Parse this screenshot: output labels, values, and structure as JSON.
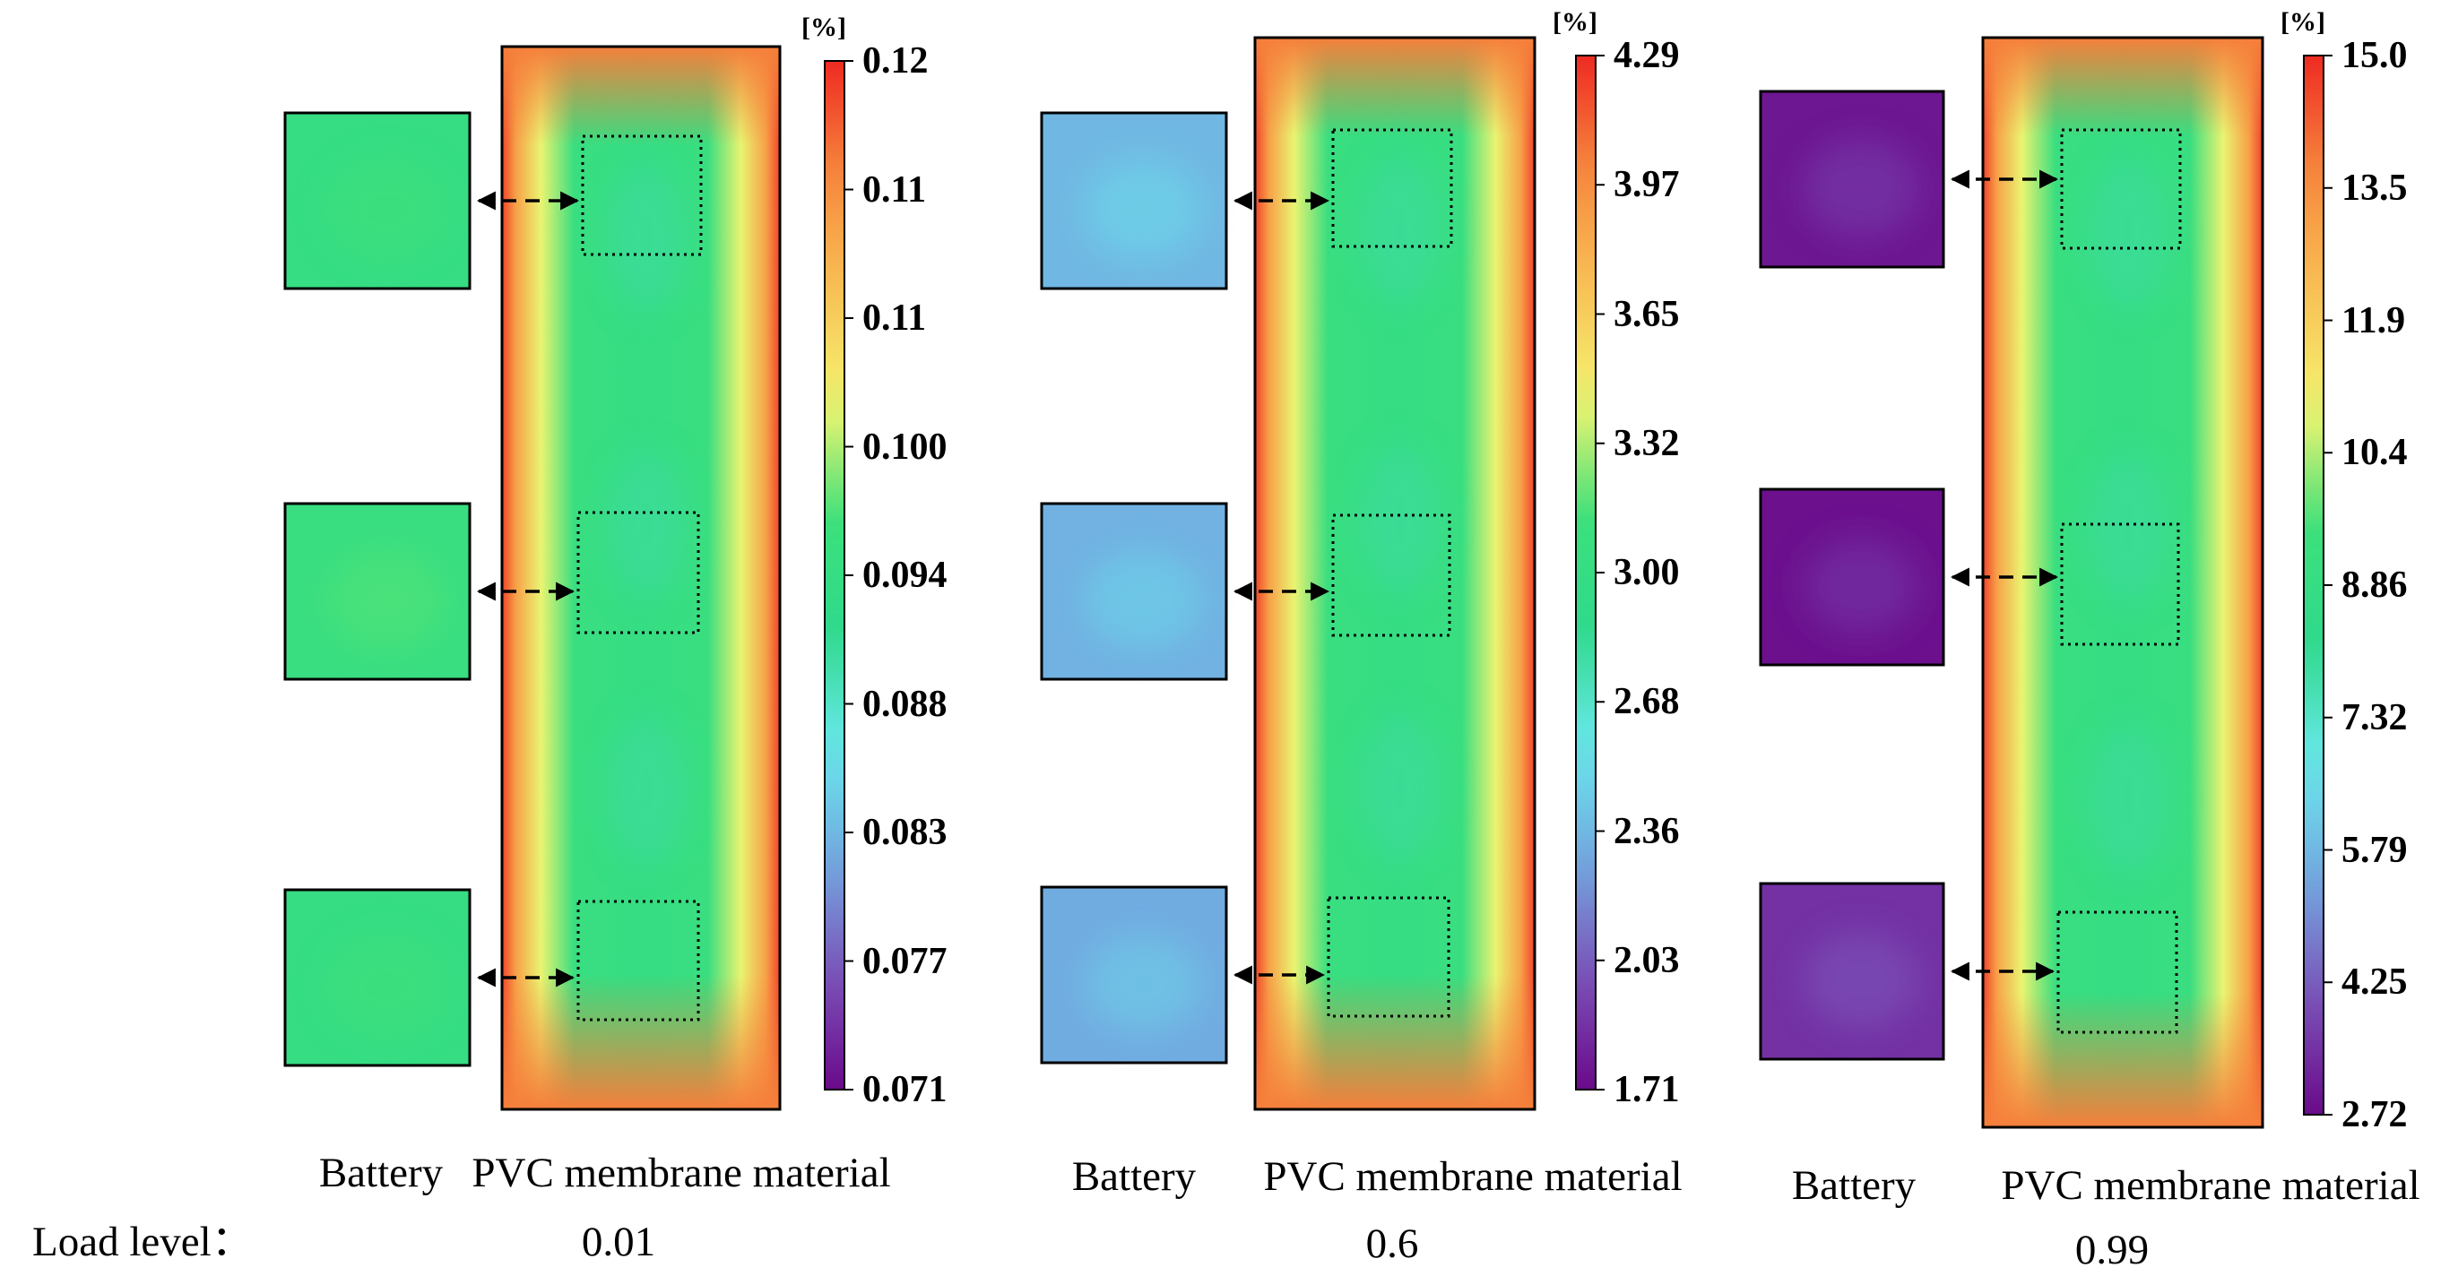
{
  "colors": {
    "colormap": [
      "#6a0a8a",
      "#7b52b8",
      "#72a8e0",
      "#6ae8ec",
      "#2fd98c",
      "#3de07a",
      "#f5f570",
      "#f8c055",
      "#f6883e",
      "#ee2a22"
    ],
    "frame": "#000000",
    "arrow": "#000000"
  },
  "footer": {
    "load_level_label": "Load level："
  },
  "panels": [
    {
      "battery_label": "Battery",
      "membrane_label": "PVC membrane material",
      "load_value": "0.01",
      "colorbar": {
        "unit": "[%]",
        "ticks": [
          "0.12",
          "0.11",
          "0.11",
          "0.100",
          "0.094",
          "0.088",
          "0.083",
          "0.077",
          "0.071"
        ]
      },
      "battery_levels": [
        0.5,
        0.52,
        0.5
      ]
    },
    {
      "battery_label": "Battery",
      "membrane_label": "PVC membrane material",
      "load_value": "0.6",
      "colorbar": {
        "unit": "[%]",
        "ticks": [
          "4.29",
          "3.97",
          "3.65",
          "3.32",
          "3.00",
          "2.68",
          "2.36",
          "2.03",
          "1.71"
        ]
      },
      "battery_levels": [
        0.25,
        0.24,
        0.23
      ]
    },
    {
      "battery_label": "Battery",
      "membrane_label": "PVC membrane material",
      "load_value": "0.99",
      "colorbar": {
        "unit": "[%]",
        "ticks": [
          "15.0",
          "13.5",
          "11.9",
          "10.4",
          "8.86",
          "7.32",
          "5.79",
          "4.25",
          "2.72"
        ]
      },
      "battery_levels": [
        0.02,
        0.01,
        0.06
      ]
    }
  ]
}
